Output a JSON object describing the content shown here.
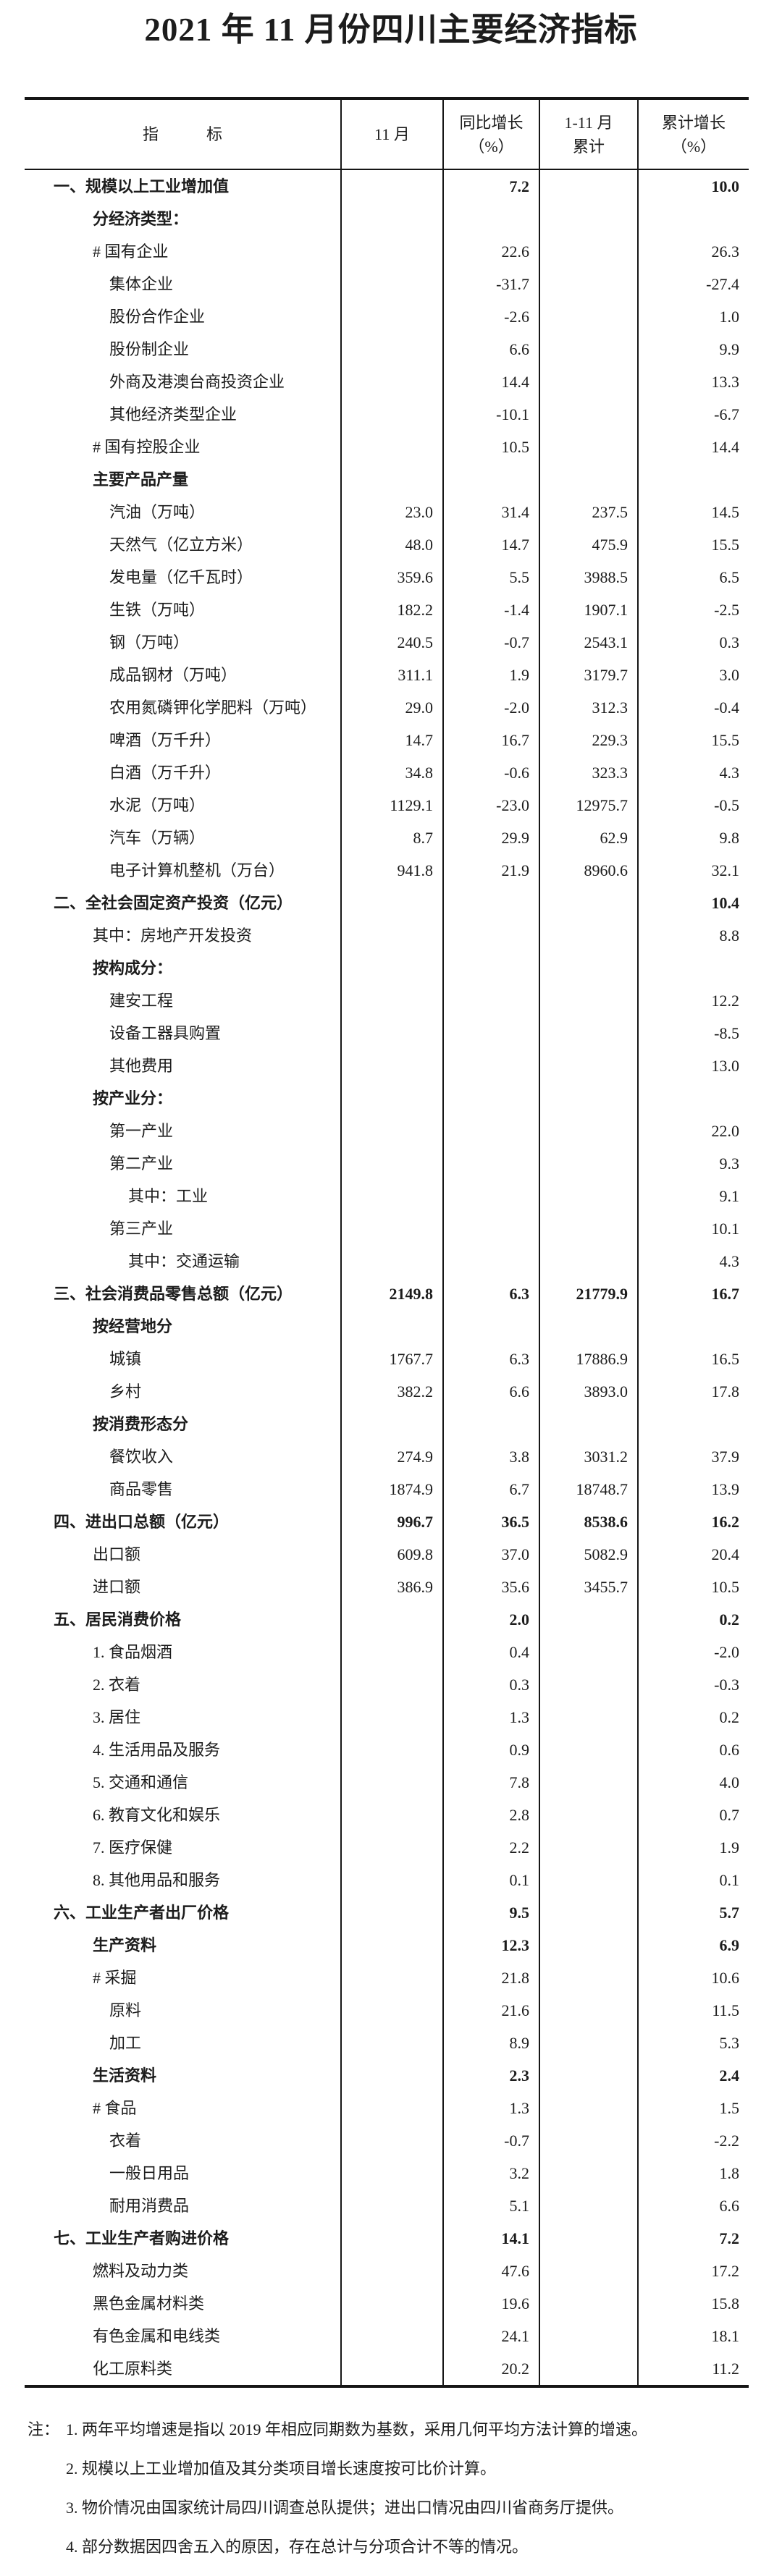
{
  "title": "2021 年 11 月份四川主要经济指标",
  "colors": {
    "background": "#ffffff",
    "text": "#1c1c1c",
    "border": "#161616"
  },
  "table": {
    "headers": {
      "indicator": "指　　　标",
      "november": "11 月",
      "yoy_growth": "同比增长\n（%）",
      "jan_nov_cumulative": "1-11 月\n累计",
      "cumulative_growth": "累计增长\n（%）"
    },
    "rows": [
      {
        "label": "一、规模以上工业增加值",
        "indent": 0,
        "bold": true,
        "values": [
          "",
          "7.2",
          "",
          "10.0"
        ]
      },
      {
        "label": "分经济类型：",
        "indent": 1,
        "bold": true,
        "values": [
          "",
          "",
          "",
          ""
        ]
      },
      {
        "label": "# 国有企业",
        "indent": 1,
        "bold": false,
        "values": [
          "",
          "22.6",
          "",
          "26.3"
        ]
      },
      {
        "label": "集体企业",
        "indent": 2,
        "bold": false,
        "values": [
          "",
          "-31.7",
          "",
          "-27.4"
        ]
      },
      {
        "label": "股份合作企业",
        "indent": 2,
        "bold": false,
        "values": [
          "",
          "-2.6",
          "",
          "1.0"
        ]
      },
      {
        "label": "股份制企业",
        "indent": 2,
        "bold": false,
        "values": [
          "",
          "6.6",
          "",
          "9.9"
        ]
      },
      {
        "label": "外商及港澳台商投资企业",
        "indent": 2,
        "bold": false,
        "values": [
          "",
          "14.4",
          "",
          "13.3"
        ]
      },
      {
        "label": "其他经济类型企业",
        "indent": 2,
        "bold": false,
        "values": [
          "",
          "-10.1",
          "",
          "-6.7"
        ]
      },
      {
        "label": "# 国有控股企业",
        "indent": 1,
        "bold": false,
        "values": [
          "",
          "10.5",
          "",
          "14.4"
        ]
      },
      {
        "label": "主要产品产量",
        "indent": 1,
        "bold": true,
        "values": [
          "",
          "",
          "",
          ""
        ]
      },
      {
        "label": "汽油（万吨）",
        "indent": 2,
        "bold": false,
        "values": [
          "23.0",
          "31.4",
          "237.5",
          "14.5"
        ]
      },
      {
        "label": "天然气（亿立方米）",
        "indent": 2,
        "bold": false,
        "values": [
          "48.0",
          "14.7",
          "475.9",
          "15.5"
        ]
      },
      {
        "label": "发电量（亿千瓦时）",
        "indent": 2,
        "bold": false,
        "values": [
          "359.6",
          "5.5",
          "3988.5",
          "6.5"
        ]
      },
      {
        "label": "生铁（万吨）",
        "indent": 2,
        "bold": false,
        "values": [
          "182.2",
          "-1.4",
          "1907.1",
          "-2.5"
        ]
      },
      {
        "label": "钢（万吨）",
        "indent": 2,
        "bold": false,
        "values": [
          "240.5",
          "-0.7",
          "2543.1",
          "0.3"
        ]
      },
      {
        "label": "成品钢材（万吨）",
        "indent": 2,
        "bold": false,
        "values": [
          "311.1",
          "1.9",
          "3179.7",
          "3.0"
        ]
      },
      {
        "label": "农用氮磷钾化学肥料（万吨）",
        "indent": 2,
        "bold": false,
        "values": [
          "29.0",
          "-2.0",
          "312.3",
          "-0.4"
        ]
      },
      {
        "label": "啤酒（万千升）",
        "indent": 2,
        "bold": false,
        "values": [
          "14.7",
          "16.7",
          "229.3",
          "15.5"
        ]
      },
      {
        "label": "白酒（万千升）",
        "indent": 2,
        "bold": false,
        "values": [
          "34.8",
          "-0.6",
          "323.3",
          "4.3"
        ]
      },
      {
        "label": "水泥（万吨）",
        "indent": 2,
        "bold": false,
        "values": [
          "1129.1",
          "-23.0",
          "12975.7",
          "-0.5"
        ]
      },
      {
        "label": "汽车（万辆）",
        "indent": 2,
        "bold": false,
        "values": [
          "8.7",
          "29.9",
          "62.9",
          "9.8"
        ]
      },
      {
        "label": "电子计算机整机（万台）",
        "indent": 2,
        "bold": false,
        "values": [
          "941.8",
          "21.9",
          "8960.6",
          "32.1"
        ]
      },
      {
        "label": "二、全社会固定资产投资（亿元）",
        "indent": 0,
        "bold": true,
        "values": [
          "",
          "",
          "",
          "10.4"
        ]
      },
      {
        "label": "其中：房地产开发投资",
        "indent": 1,
        "bold": false,
        "values": [
          "",
          "",
          "",
          "8.8"
        ]
      },
      {
        "label": "按构成分：",
        "indent": 1,
        "bold": true,
        "values": [
          "",
          "",
          "",
          ""
        ]
      },
      {
        "label": "建安工程",
        "indent": 2,
        "bold": false,
        "values": [
          "",
          "",
          "",
          "12.2"
        ]
      },
      {
        "label": "设备工器具购置",
        "indent": 2,
        "bold": false,
        "values": [
          "",
          "",
          "",
          "-8.5"
        ]
      },
      {
        "label": "其他费用",
        "indent": 2,
        "bold": false,
        "values": [
          "",
          "",
          "",
          "13.0"
        ]
      },
      {
        "label": "按产业分：",
        "indent": 1,
        "bold": true,
        "values": [
          "",
          "",
          "",
          ""
        ]
      },
      {
        "label": "第一产业",
        "indent": 2,
        "bold": false,
        "values": [
          "",
          "",
          "",
          "22.0"
        ]
      },
      {
        "label": "第二产业",
        "indent": 2,
        "bold": false,
        "values": [
          "",
          "",
          "",
          "9.3"
        ]
      },
      {
        "label": "其中：工业",
        "indent": 3,
        "bold": false,
        "values": [
          "",
          "",
          "",
          "9.1"
        ]
      },
      {
        "label": "第三产业",
        "indent": 2,
        "bold": false,
        "values": [
          "",
          "",
          "",
          "10.1"
        ]
      },
      {
        "label": "其中：交通运输",
        "indent": 3,
        "bold": false,
        "values": [
          "",
          "",
          "",
          "4.3"
        ]
      },
      {
        "label": "三、社会消费品零售总额（亿元）",
        "indent": 0,
        "bold": true,
        "values": [
          "2149.8",
          "6.3",
          "21779.9",
          "16.7"
        ]
      },
      {
        "label": "按经营地分",
        "indent": 1,
        "bold": true,
        "values": [
          "",
          "",
          "",
          ""
        ]
      },
      {
        "label": "城镇",
        "indent": 2,
        "bold": false,
        "values": [
          "1767.7",
          "6.3",
          "17886.9",
          "16.5"
        ]
      },
      {
        "label": "乡村",
        "indent": 2,
        "bold": false,
        "values": [
          "382.2",
          "6.6",
          "3893.0",
          "17.8"
        ]
      },
      {
        "label": "按消费形态分",
        "indent": 1,
        "bold": true,
        "values": [
          "",
          "",
          "",
          ""
        ]
      },
      {
        "label": "餐饮收入",
        "indent": 2,
        "bold": false,
        "values": [
          "274.9",
          "3.8",
          "3031.2",
          "37.9"
        ]
      },
      {
        "label": "商品零售",
        "indent": 2,
        "bold": false,
        "values": [
          "1874.9",
          "6.7",
          "18748.7",
          "13.9"
        ]
      },
      {
        "label": "四、进出口总额（亿元）",
        "indent": 0,
        "bold": true,
        "values": [
          "996.7",
          "36.5",
          "8538.6",
          "16.2"
        ]
      },
      {
        "label": "出口额",
        "indent": 1,
        "bold": false,
        "values": [
          "609.8",
          "37.0",
          "5082.9",
          "20.4"
        ]
      },
      {
        "label": "进口额",
        "indent": 1,
        "bold": false,
        "values": [
          "386.9",
          "35.6",
          "3455.7",
          "10.5"
        ]
      },
      {
        "label": "五、居民消费价格",
        "indent": 0,
        "bold": true,
        "values": [
          "",
          "2.0",
          "",
          "0.2"
        ]
      },
      {
        "label": "1. 食品烟酒",
        "indent": 1,
        "bold": false,
        "values": [
          "",
          "0.4",
          "",
          "-2.0"
        ]
      },
      {
        "label": "2. 衣着",
        "indent": 1,
        "bold": false,
        "values": [
          "",
          "0.3",
          "",
          "-0.3"
        ]
      },
      {
        "label": "3. 居住",
        "indent": 1,
        "bold": false,
        "values": [
          "",
          "1.3",
          "",
          "0.2"
        ]
      },
      {
        "label": "4. 生活用品及服务",
        "indent": 1,
        "bold": false,
        "values": [
          "",
          "0.9",
          "",
          "0.6"
        ]
      },
      {
        "label": "5. 交通和通信",
        "indent": 1,
        "bold": false,
        "values": [
          "",
          "7.8",
          "",
          "4.0"
        ]
      },
      {
        "label": "6. 教育文化和娱乐",
        "indent": 1,
        "bold": false,
        "values": [
          "",
          "2.8",
          "",
          "0.7"
        ]
      },
      {
        "label": "7. 医疗保健",
        "indent": 1,
        "bold": false,
        "values": [
          "",
          "2.2",
          "",
          "1.9"
        ]
      },
      {
        "label": "8. 其他用品和服务",
        "indent": 1,
        "bold": false,
        "values": [
          "",
          "0.1",
          "",
          "0.1"
        ]
      },
      {
        "label": "六、工业生产者出厂价格",
        "indent": 0,
        "bold": true,
        "values": [
          "",
          "9.5",
          "",
          "5.7"
        ]
      },
      {
        "label": "生产资料",
        "indent": 1,
        "bold": true,
        "values": [
          "",
          "12.3",
          "",
          "6.9"
        ]
      },
      {
        "label": "# 采掘",
        "indent": 1,
        "bold": false,
        "values": [
          "",
          "21.8",
          "",
          "10.6"
        ]
      },
      {
        "label": "原料",
        "indent": 2,
        "bold": false,
        "values": [
          "",
          "21.6",
          "",
          "11.5"
        ]
      },
      {
        "label": "加工",
        "indent": 2,
        "bold": false,
        "values": [
          "",
          "8.9",
          "",
          "5.3"
        ]
      },
      {
        "label": "生活资料",
        "indent": 1,
        "bold": true,
        "values": [
          "",
          "2.3",
          "",
          "2.4"
        ]
      },
      {
        "label": "# 食品",
        "indent": 1,
        "bold": false,
        "values": [
          "",
          "1.3",
          "",
          "1.5"
        ]
      },
      {
        "label": "衣着",
        "indent": 2,
        "bold": false,
        "values": [
          "",
          "-0.7",
          "",
          "-2.2"
        ]
      },
      {
        "label": "一般日用品",
        "indent": 2,
        "bold": false,
        "values": [
          "",
          "3.2",
          "",
          "1.8"
        ]
      },
      {
        "label": "耐用消费品",
        "indent": 2,
        "bold": false,
        "values": [
          "",
          "5.1",
          "",
          "6.6"
        ]
      },
      {
        "label": "七、工业生产者购进价格",
        "indent": 0,
        "bold": true,
        "values": [
          "",
          "14.1",
          "",
          "7.2"
        ]
      },
      {
        "label": "燃料及动力类",
        "indent": 1,
        "bold": false,
        "values": [
          "",
          "47.6",
          "",
          "17.2"
        ]
      },
      {
        "label": "黑色金属材料类",
        "indent": 1,
        "bold": false,
        "values": [
          "",
          "19.6",
          "",
          "15.8"
        ]
      },
      {
        "label": "有色金属和电线类",
        "indent": 1,
        "bold": false,
        "values": [
          "",
          "24.1",
          "",
          "18.1"
        ]
      },
      {
        "label": "化工原料类",
        "indent": 1,
        "bold": false,
        "values": [
          "",
          "20.2",
          "",
          "11.2"
        ]
      }
    ]
  },
  "notes": {
    "marker": "注：",
    "items": [
      "1. 两年平均增速是指以 2019 年相应同期数为基数，采用几何平均方法计算的增速。",
      "2. 规模以上工业增加值及其分类项目增长速度按可比价计算。",
      "3. 物价情况由国家统计局四川调查总队提供；进出口情况由四川省商务厅提供。",
      "4. 部分数据因四舍五入的原因，存在总计与分项合计不等的情况。"
    ]
  }
}
